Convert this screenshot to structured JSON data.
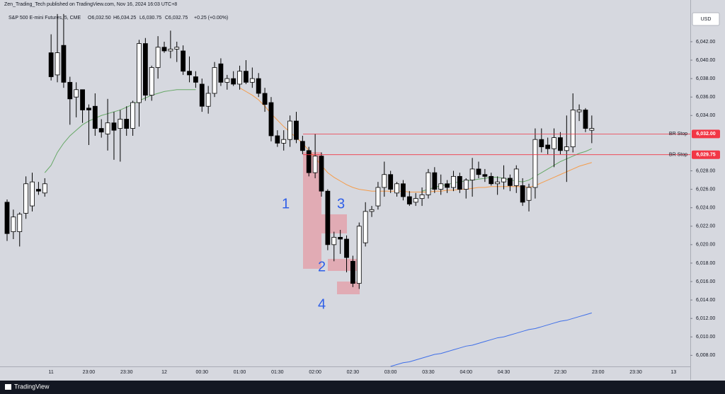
{
  "header": {
    "publisher": "Zen_Trading_Tech published on TradingView.com, Nov 16, 2024 16:03 UTC+8",
    "symbol": "S&P 500 E-mini Futures, 5, CME",
    "open": "O6,032.50",
    "high": "H6,034.25",
    "low": "L6,030.75",
    "close": "C6,032.75",
    "change": "+0.25 (+0.00%)",
    "currency": "USD",
    "brand": "TradingView"
  },
  "chart_data": {
    "type": "candlestick",
    "categories": [
      null,
      null,
      null,
      null,
      null,
      null,
      null,
      "11",
      null,
      null,
      null,
      null,
      null,
      "23:00",
      null,
      null,
      null,
      null,
      null,
      "23:30",
      null,
      null,
      null,
      null,
      null,
      "12",
      null,
      null,
      null,
      null,
      null,
      "00:30",
      null,
      null,
      null,
      null,
      null,
      "01:00",
      null,
      null,
      null,
      null,
      null,
      "01:30",
      null,
      null,
      null,
      null,
      null,
      "02:00",
      null,
      null,
      null,
      null,
      null,
      "02:30",
      null,
      null,
      null,
      null,
      null,
      "03:00",
      null,
      null,
      null,
      null,
      null,
      "03:30",
      null,
      null,
      null,
      null,
      null,
      "04:00",
      null,
      null,
      null,
      null,
      null,
      "04:30",
      null,
      null,
      null,
      null,
      null,
      null,
      null,
      null,
      "22:30",
      null,
      null,
      null,
      null,
      null,
      "23:00",
      null,
      null,
      null,
      null,
      null,
      "23:30",
      null,
      null,
      null,
      null,
      null,
      "13"
    ],
    "open": [
      6024.6,
      6021.4,
      6021.4,
      6023.4,
      6024.2,
      6026.0,
      6025.6,
      6040.8,
      6038.4,
      6041.6,
      6037.6,
      6036.0,
      6036.8,
      6034.8,
      6035.0,
      6032.6,
      6032.0,
      6033.2,
      6032.6,
      6033.6,
      6032.6,
      6035.4,
      6041.8,
      6036.2,
      6039.2,
      6041.4,
      6041.0,
      6041.2,
      6041.0,
      6038.8,
      6038.2,
      6037.4,
      6035.0,
      6036.4,
      6039.6,
      6037.6,
      6038.0,
      6037.4,
      6038.8,
      6037.6,
      6038.0,
      6036.4,
      6035.4,
      6031.8,
      6031.0,
      6031.4,
      6033.4,
      6031.2,
      6030.2,
      6027.8,
      6029.6,
      6025.8,
      6020.0,
      6020.8,
      6020.6,
      6018.2,
      6015.8,
      6020.2,
      6023.6,
      6024.2,
      6026.2,
      6027.6,
      6025.6,
      6026.6,
      6025.2,
      6024.6,
      6025.0,
      6025.4,
      6027.8,
      6026.0,
      6026.6,
      6026.2,
      6027.4,
      6026.0,
      6027.0,
      6028.2,
      6027.6,
      6027.4,
      6026.6,
      6026.8,
      6027.2,
      6026.4,
      6026.4,
      6024.8,
      6026.2,
      6031.4,
      6030.8,
      6030.4,
      6031.6,
      6030.2,
      6030.6,
      6034.4,
      6034.6,
      6032.4,
      null,
      null,
      null,
      null,
      null,
      null,
      null,
      null,
      null,
      null,
      null,
      null,
      null
    ],
    "high": [
      6024.9,
      6023.8,
      6023.5,
      6027.4,
      6027.8,
      6026.8,
      6027.2,
      6042.8,
      6045.0,
      6045.0,
      6038.2,
      6037.6,
      6036.8,
      6035.2,
      6036.4,
      6033.6,
      6035.8,
      6034.4,
      6034.6,
      6035.0,
      6035.6,
      6042.2,
      6042.4,
      6039.4,
      6042.6,
      6042.0,
      6043.2,
      6042.0,
      6041.6,
      6040.4,
      6038.8,
      6038.0,
      6037.2,
      6039.8,
      6040.2,
      6038.4,
      6038.8,
      6039.4,
      6040.0,
      6039.2,
      6038.6,
      6037.0,
      6036.0,
      6032.4,
      6032.4,
      6034.0,
      6034.4,
      6031.8,
      6030.6,
      6032.0,
      6030.0,
      6026.0,
      6021.4,
      6021.6,
      6021.0,
      6018.8,
      6022.4,
      6024.6,
      6024.2,
      6026.8,
      6029.0,
      6028.0,
      6026.8,
      6027.0,
      6025.8,
      6025.6,
      6026.2,
      6028.2,
      6028.4,
      6027.6,
      6027.0,
      6028.0,
      6027.8,
      6027.2,
      6029.4,
      6029.0,
      6028.2,
      6027.8,
      6027.4,
      6028.6,
      6027.6,
      6028.6,
      6027.2,
      6026.6,
      6032.6,
      6032.6,
      6031.6,
      6032.6,
      6032.2,
      6034.0,
      6036.4,
      6035.2,
      6034.8,
      6034.0,
      null,
      null,
      null,
      null,
      null,
      null,
      null,
      null,
      null,
      null,
      null,
      null,
      null
    ],
    "low": [
      6020.4,
      6020.6,
      6019.8,
      6022.8,
      6023.6,
      6025.4,
      6025.2,
      6037.8,
      6037.6,
      6037.0,
      6033.0,
      6033.8,
      6033.2,
      6030.8,
      6031.8,
      6031.6,
      6030.2,
      6029.2,
      6029.0,
      6031.8,
      6031.8,
      6032.8,
      6035.6,
      6035.6,
      6038.0,
      6040.8,
      6040.2,
      6039.8,
      6038.4,
      6037.6,
      6037.0,
      6034.4,
      6034.2,
      6036.0,
      6037.2,
      6036.8,
      6037.2,
      6036.8,
      6037.4,
      6037.0,
      6036.0,
      6034.4,
      6031.2,
      6030.6,
      6030.2,
      6030.6,
      6031.0,
      6029.8,
      6027.4,
      6027.2,
      6025.2,
      6019.4,
      6018.2,
      6019.0,
      6017.0,
      6015.4,
      6015.2,
      6019.8,
      6023.0,
      6023.8,
      6025.2,
      6025.6,
      6025.2,
      6024.8,
      6024.2,
      6024.2,
      6024.2,
      6025.0,
      6025.6,
      6025.4,
      6025.6,
      6025.8,
      6025.6,
      6025.0,
      6025.2,
      6027.2,
      6026.8,
      6026.4,
      6025.4,
      6026.0,
      6025.8,
      6025.6,
      6024.2,
      6023.6,
      6025.0,
      6030.0,
      6029.8,
      6028.4,
      6029.8,
      6026.8,
      6030.0,
      6033.4,
      6032.2,
      6031.0,
      null,
      null,
      null,
      null,
      null,
      null,
      null,
      null,
      null,
      null,
      null,
      null,
      null
    ],
    "close": [
      6021.2,
      6023.0,
      6023.3,
      6026.6,
      6026.8,
      6025.8,
      6026.6,
      6038.2,
      6040.8,
      6037.6,
      6035.8,
      6036.8,
      6034.6,
      6034.6,
      6032.6,
      6032.2,
      6033.2,
      6032.4,
      6033.6,
      6032.6,
      6035.4,
      6041.8,
      6036.2,
      6039.2,
      6041.4,
      6041.0,
      6041.2,
      6041.4,
      6038.8,
      6038.4,
      6037.6,
      6035.0,
      6036.4,
      6039.2,
      6037.6,
      6038.0,
      6037.4,
      6038.8,
      6037.6,
      6038.0,
      6036.4,
      6035.2,
      6031.8,
      6031.0,
      6031.4,
      6033.4,
      6031.4,
      6030.2,
      6027.8,
      6029.6,
      6025.8,
      6020.0,
      6020.8,
      6020.6,
      6018.6,
      6015.8,
      6022.0,
      6023.6,
      6023.8,
      6026.2,
      6027.6,
      6026.0,
      6026.6,
      6025.2,
      6024.4,
      6025.0,
      6025.4,
      6027.8,
      6026.0,
      6026.6,
      6026.2,
      6027.4,
      6026.0,
      6027.0,
      6028.2,
      6027.6,
      6027.4,
      6026.6,
      6026.8,
      6027.2,
      6026.4,
      6028.2,
      6024.6,
      6026.2,
      6031.4,
      6030.6,
      6030.4,
      6031.6,
      6030.2,
      6030.6,
      6034.6,
      6034.6,
      6032.6,
      6032.6,
      null,
      null,
      null,
      null,
      null,
      null,
      null,
      null,
      null,
      null,
      null,
      null,
      null
    ],
    "up_color": "#ffffff",
    "down_color": "#000000",
    "border_color": "#000000",
    "overlays": [
      {
        "color": "#f59c4a",
        "values": [
          null,
          null,
          null,
          null,
          null,
          null,
          null,
          null,
          null,
          null,
          null,
          null,
          null,
          null,
          null,
          null,
          null,
          null,
          null,
          null,
          null,
          null,
          null,
          null,
          null,
          null,
          null,
          null,
          null,
          null,
          null,
          null,
          null,
          null,
          null,
          null,
          null,
          6037.0,
          6036.6,
          6036.2,
          6035.7,
          6035.0,
          6034.2,
          6033.5,
          6032.8,
          6032.2,
          6031.6,
          6031.0,
          6030.2,
          6029.4,
          6028.6,
          6027.8,
          6027.3,
          6026.9,
          6026.5,
          6026.2,
          6026.0,
          6025.9,
          6025.8,
          6025.8,
          6025.8,
          6025.8,
          6025.8,
          6025.8,
          6025.7,
          6025.7,
          6025.7,
          6025.7,
          6025.8,
          6025.8,
          6025.9,
          6025.9,
          6026.0,
          6026.0,
          6026.1,
          6026.2,
          6026.2,
          6026.3,
          6026.3,
          6026.3,
          6026.3,
          6026.3,
          6026.3,
          6026.2,
          6026.4,
          6026.7,
          6027.0,
          6027.3,
          6027.6,
          6027.9,
          6028.2,
          6028.5,
          6028.7,
          6028.9,
          null,
          null,
          null,
          null,
          null,
          null,
          null,
          null,
          null,
          null,
          null,
          null,
          null
        ]
      },
      {
        "color": "#66a866",
        "values": [
          null,
          null,
          null,
          null,
          null,
          null,
          6027.8,
          6028.6,
          6030.0,
          6031.0,
          6031.8,
          6032.4,
          6033.0,
          6033.4,
          6033.7,
          6034.0,
          6034.2,
          6034.4,
          6034.6,
          6034.9,
          6035.2,
          6035.6,
          6035.9,
          6036.2,
          6036.4,
          6036.6,
          6036.7,
          6036.8,
          6036.8,
          6036.8,
          6036.8,
          null,
          null,
          null,
          null,
          null,
          null,
          null,
          null,
          null,
          null,
          null,
          null,
          null,
          null,
          null,
          null,
          null,
          null,
          null,
          null,
          null,
          null,
          null,
          null,
          null,
          null,
          null,
          null,
          null,
          null,
          null,
          null,
          null,
          null,
          null,
          6025.8,
          6026.0,
          6026.2,
          6026.4,
          6026.5,
          6026.7,
          6026.8,
          6026.9,
          6027.0,
          6027.1,
          6027.2,
          6027.3,
          6027.3,
          6027.2,
          6027.0,
          6026.9,
          6026.8,
          6027.0,
          6027.4,
          6027.8,
          6028.2,
          6028.6,
          6029.0,
          6029.3,
          6029.6,
          6029.9,
          6030.1,
          6030.4,
          null,
          null,
          null,
          null,
          null,
          null,
          null,
          null,
          null,
          null,
          null,
          null,
          null
        ]
      },
      {
        "color": "#3f6fe8",
        "values": [
          null,
          null,
          null,
          null,
          null,
          null,
          null,
          null,
          null,
          null,
          null,
          null,
          null,
          null,
          null,
          null,
          null,
          null,
          null,
          null,
          null,
          null,
          null,
          null,
          null,
          null,
          null,
          null,
          null,
          null,
          null,
          null,
          null,
          null,
          null,
          null,
          null,
          null,
          null,
          null,
          null,
          null,
          null,
          null,
          null,
          null,
          null,
          null,
          null,
          null,
          null,
          null,
          null,
          null,
          null,
          null,
          null,
          null,
          null,
          null,
          null,
          6006.8,
          6007.0,
          6007.2,
          6007.3,
          6007.5,
          6007.7,
          6007.9,
          6008.1,
          6008.2,
          6008.4,
          6008.6,
          6008.8,
          6009.0,
          6009.1,
          6009.3,
          6009.5,
          6009.7,
          6009.9,
          6010.0,
          6010.2,
          6010.4,
          6010.6,
          6010.8,
          6010.9,
          6011.1,
          6011.3,
          6011.5,
          6011.7,
          6011.8,
          6012.0,
          6012.2,
          6012.4,
          6012.6,
          null,
          null,
          null,
          null,
          null,
          null,
          null,
          null,
          null,
          null,
          null,
          null,
          null
        ]
      }
    ],
    "hlines": [
      {
        "label": "BR Stop",
        "value": 6032,
        "value_label": "6,032.00",
        "color": "#f23645"
      },
      {
        "label": "BR Stop",
        "value": 6029.75,
        "value_label": "6,029.75",
        "color": "#f23645"
      }
    ],
    "annotations": [
      "1",
      "2",
      "3",
      "4"
    ],
    "ylim": [
      6006.8,
      6045.6
    ],
    "yticks": [
      {
        "value": 6008,
        "label": "6,008.00"
      },
      {
        "value": 6010,
        "label": "6,010.00"
      },
      {
        "value": 6012,
        "label": "6,012.00"
      },
      {
        "value": 6014,
        "label": "6,014.00"
      },
      {
        "value": 6016,
        "label": "6,016.00"
      },
      {
        "value": 6018,
        "label": "6,018.00"
      },
      {
        "value": 6020,
        "label": "6,020.00"
      },
      {
        "value": 6022,
        "label": "6,022.00"
      },
      {
        "value": 6024,
        "label": "6,024.00"
      },
      {
        "value": 6026,
        "label": "6,026.00"
      },
      {
        "value": 6028,
        "label": "6,028.00"
      },
      {
        "value": 6034,
        "label": "6,034.00"
      },
      {
        "value": 6036,
        "label": "6,036.00"
      },
      {
        "value": 6038,
        "label": "6,038.00"
      },
      {
        "value": 6040,
        "label": "6,040.00"
      },
      {
        "value": 6042,
        "label": "6,042.00"
      }
    ],
    "grid": false
  }
}
